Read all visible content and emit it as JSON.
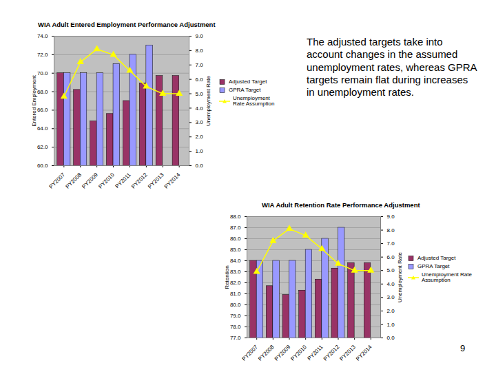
{
  "chart_data": [
    {
      "type": "bar",
      "title": "WIA Adult Entered Employment Performance Adjustment",
      "ylabel": "Entered Employment",
      "y2label": "Unemployment Rate",
      "categories": [
        "PY2007",
        "PY2008",
        "PY2009",
        "PY2010",
        "PY2011",
        "PY2012",
        "PY2013",
        "PY2014"
      ],
      "series": [
        {
          "name": "Adjusted Target",
          "color": "#993366",
          "values": [
            70.0,
            68.2,
            64.8,
            65.6,
            67.0,
            68.9,
            69.7,
            69.7
          ]
        },
        {
          "name": "GPRA Target",
          "color": "#9999ff",
          "values": [
            70.0,
            70.0,
            70.0,
            71.0,
            72.0,
            73.0,
            null,
            null
          ]
        },
        {
          "name": "Unemployment Rate Assumption",
          "type": "line",
          "axis": "y2",
          "color": "#ffff00",
          "marker": "triangle",
          "values": [
            4.8,
            7.2,
            8.1,
            7.7,
            6.6,
            5.5,
            5.0,
            5.0
          ]
        }
      ],
      "ylim": [
        60,
        74
      ],
      "yticks": [
        {
          "value": 60,
          "label": "60.0"
        },
        {
          "value": 62,
          "label": "62.0"
        },
        {
          "value": 64,
          "label": "64.0"
        },
        {
          "value": 66,
          "label": "66.0"
        },
        {
          "value": 68,
          "label": "68.0"
        },
        {
          "value": 70,
          "label": "70.0"
        },
        {
          "value": 72,
          "label": "72.0"
        },
        {
          "value": 74,
          "label": "74.0"
        }
      ],
      "y2lim": [
        0,
        9
      ],
      "y2ticks": [
        {
          "value": 0,
          "label": "0.0"
        },
        {
          "value": 1,
          "label": "1.0"
        },
        {
          "value": 2,
          "label": "2.0"
        },
        {
          "value": 3,
          "label": "3.0"
        },
        {
          "value": 4,
          "label": "4.0"
        },
        {
          "value": 5,
          "label": "5.0"
        },
        {
          "value": 6,
          "label": "6.0"
        },
        {
          "value": 7,
          "label": "7.0"
        },
        {
          "value": 8,
          "label": "8.0"
        },
        {
          "value": 9,
          "label": "9.0"
        }
      ],
      "grid": true,
      "legend": "right"
    },
    {
      "type": "bar",
      "title": "WIA Adult Retention Rate Performance Adjustment",
      "ylabel": "Retention",
      "y2label": "Unemployment Rate",
      "categories": [
        "PY2007",
        "PY2008",
        "PY2009",
        "PY2010",
        "PY2011",
        "PY2012",
        "PY2013",
        "PY2014"
      ],
      "series": [
        {
          "name": "Adjusted Target",
          "color": "#993366",
          "values": [
            84.0,
            81.7,
            80.9,
            81.3,
            82.3,
            83.3,
            83.8,
            83.8
          ]
        },
        {
          "name": "GPRA Target",
          "color": "#9999ff",
          "values": [
            84.0,
            84.0,
            84.0,
            85.0,
            86.0,
            87.0,
            null,
            null
          ]
        },
        {
          "name": "Unemployment Rate Assumption",
          "type": "line",
          "axis": "y2",
          "color": "#ffff00",
          "marker": "triangle",
          "values": [
            4.9,
            7.2,
            8.1,
            7.6,
            6.6,
            5.5,
            5.0,
            5.0
          ]
        }
      ],
      "ylim": [
        77,
        88
      ],
      "yticks": [
        {
          "value": 77,
          "label": "77.0"
        },
        {
          "value": 78,
          "label": "78.0"
        },
        {
          "value": 79,
          "label": "79.0"
        },
        {
          "value": 80,
          "label": "80.0"
        },
        {
          "value": 81,
          "label": "81.0"
        },
        {
          "value": 82,
          "label": "82.0"
        },
        {
          "value": 83,
          "label": "83.0"
        },
        {
          "value": 84,
          "label": "84.0"
        },
        {
          "value": 85,
          "label": "85.0"
        },
        {
          "value": 86,
          "label": "86.0"
        },
        {
          "value": 87,
          "label": "87.0"
        },
        {
          "value": 88,
          "label": "88.0"
        }
      ],
      "y2lim": [
        0,
        9
      ],
      "y2ticks": [
        {
          "value": 0,
          "label": "0.0"
        },
        {
          "value": 1,
          "label": "1.0"
        },
        {
          "value": 2,
          "label": "2.0"
        },
        {
          "value": 3,
          "label": "3.0"
        },
        {
          "value": 4,
          "label": "4.0"
        },
        {
          "value": 5,
          "label": "5.0"
        },
        {
          "value": 6,
          "label": "6.0"
        },
        {
          "value": 7,
          "label": "7.0"
        },
        {
          "value": 8,
          "label": "8.0"
        },
        {
          "value": 9,
          "label": "9.0"
        }
      ],
      "grid": true,
      "legend": "right"
    }
  ],
  "slide": {
    "text": "The adjusted targets take into account changes in the assumed unemployment rates, whereas GPRA targets remain flat during increases in unemployment rates.",
    "page_number": 9
  }
}
